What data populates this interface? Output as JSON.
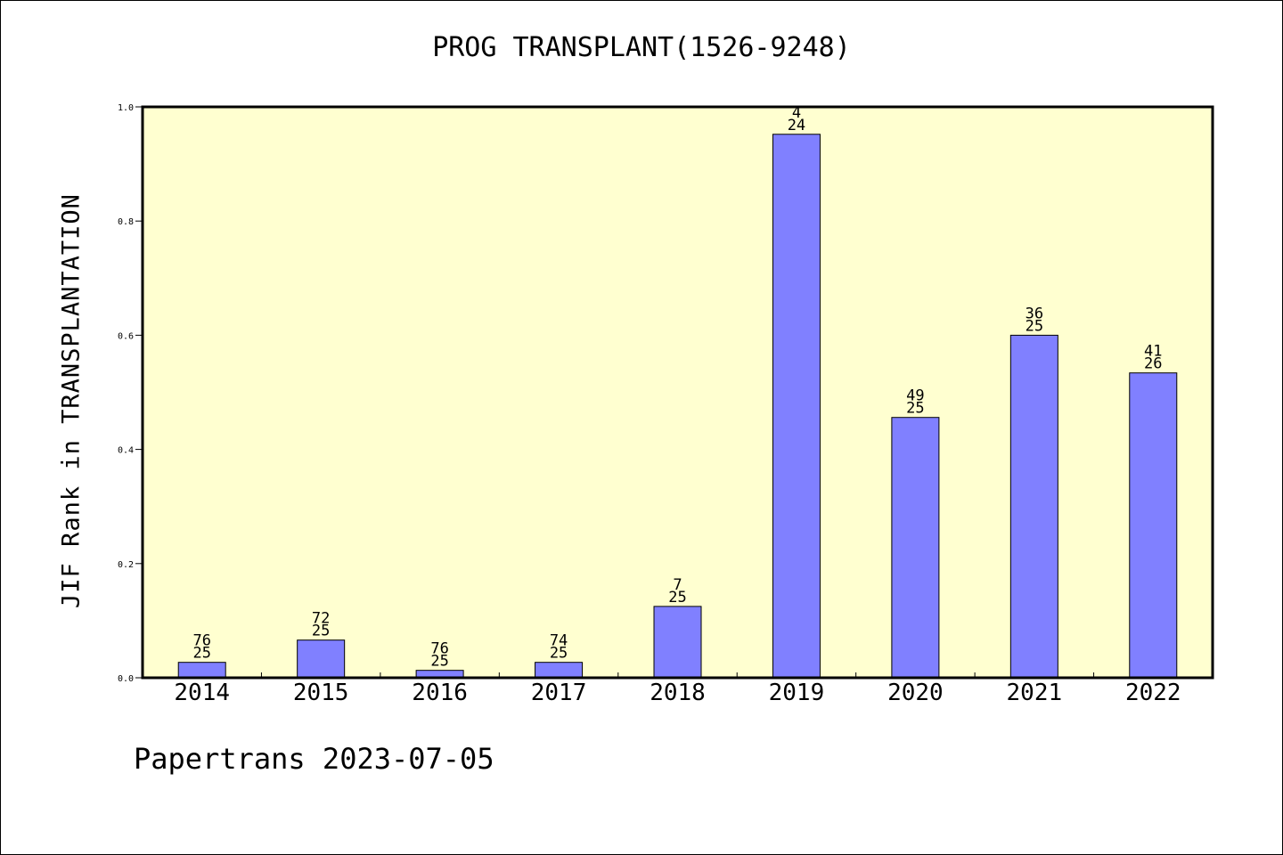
{
  "chart_data": {
    "type": "bar",
    "title": "PROG TRANSPLANT(1526-9248)",
    "xlabel": "",
    "ylabel": "JIF Rank in TRANSPLANTATION",
    "categories": [
      "2014",
      "2015",
      "2016",
      "2017",
      "2018",
      "2019",
      "2020",
      "2021",
      "2022"
    ],
    "series": [
      {
        "values": [
          0.027,
          0.066,
          0.013,
          0.027,
          0.125,
          0.952,
          0.456,
          0.6,
          0.534
        ],
        "rank": [
          "76",
          "72",
          "76",
          "74",
          "7",
          "4",
          "49",
          "36",
          "41"
        ],
        "total": [
          "25",
          "25",
          "25",
          "25",
          "25",
          "24",
          "25",
          "25",
          "26"
        ]
      }
    ],
    "ylim": [
      0,
      1.0
    ],
    "yticks": [
      "0.0",
      "0.2",
      "0.4",
      "0.6",
      "0.8",
      "1.0"
    ],
    "grid": false,
    "colors": {
      "plot_background": "#ffffd0",
      "bar_fill": "#8080ff",
      "bar_stroke": "#000000"
    }
  },
  "footer": {
    "text": "Papertrans 2023-07-05"
  }
}
